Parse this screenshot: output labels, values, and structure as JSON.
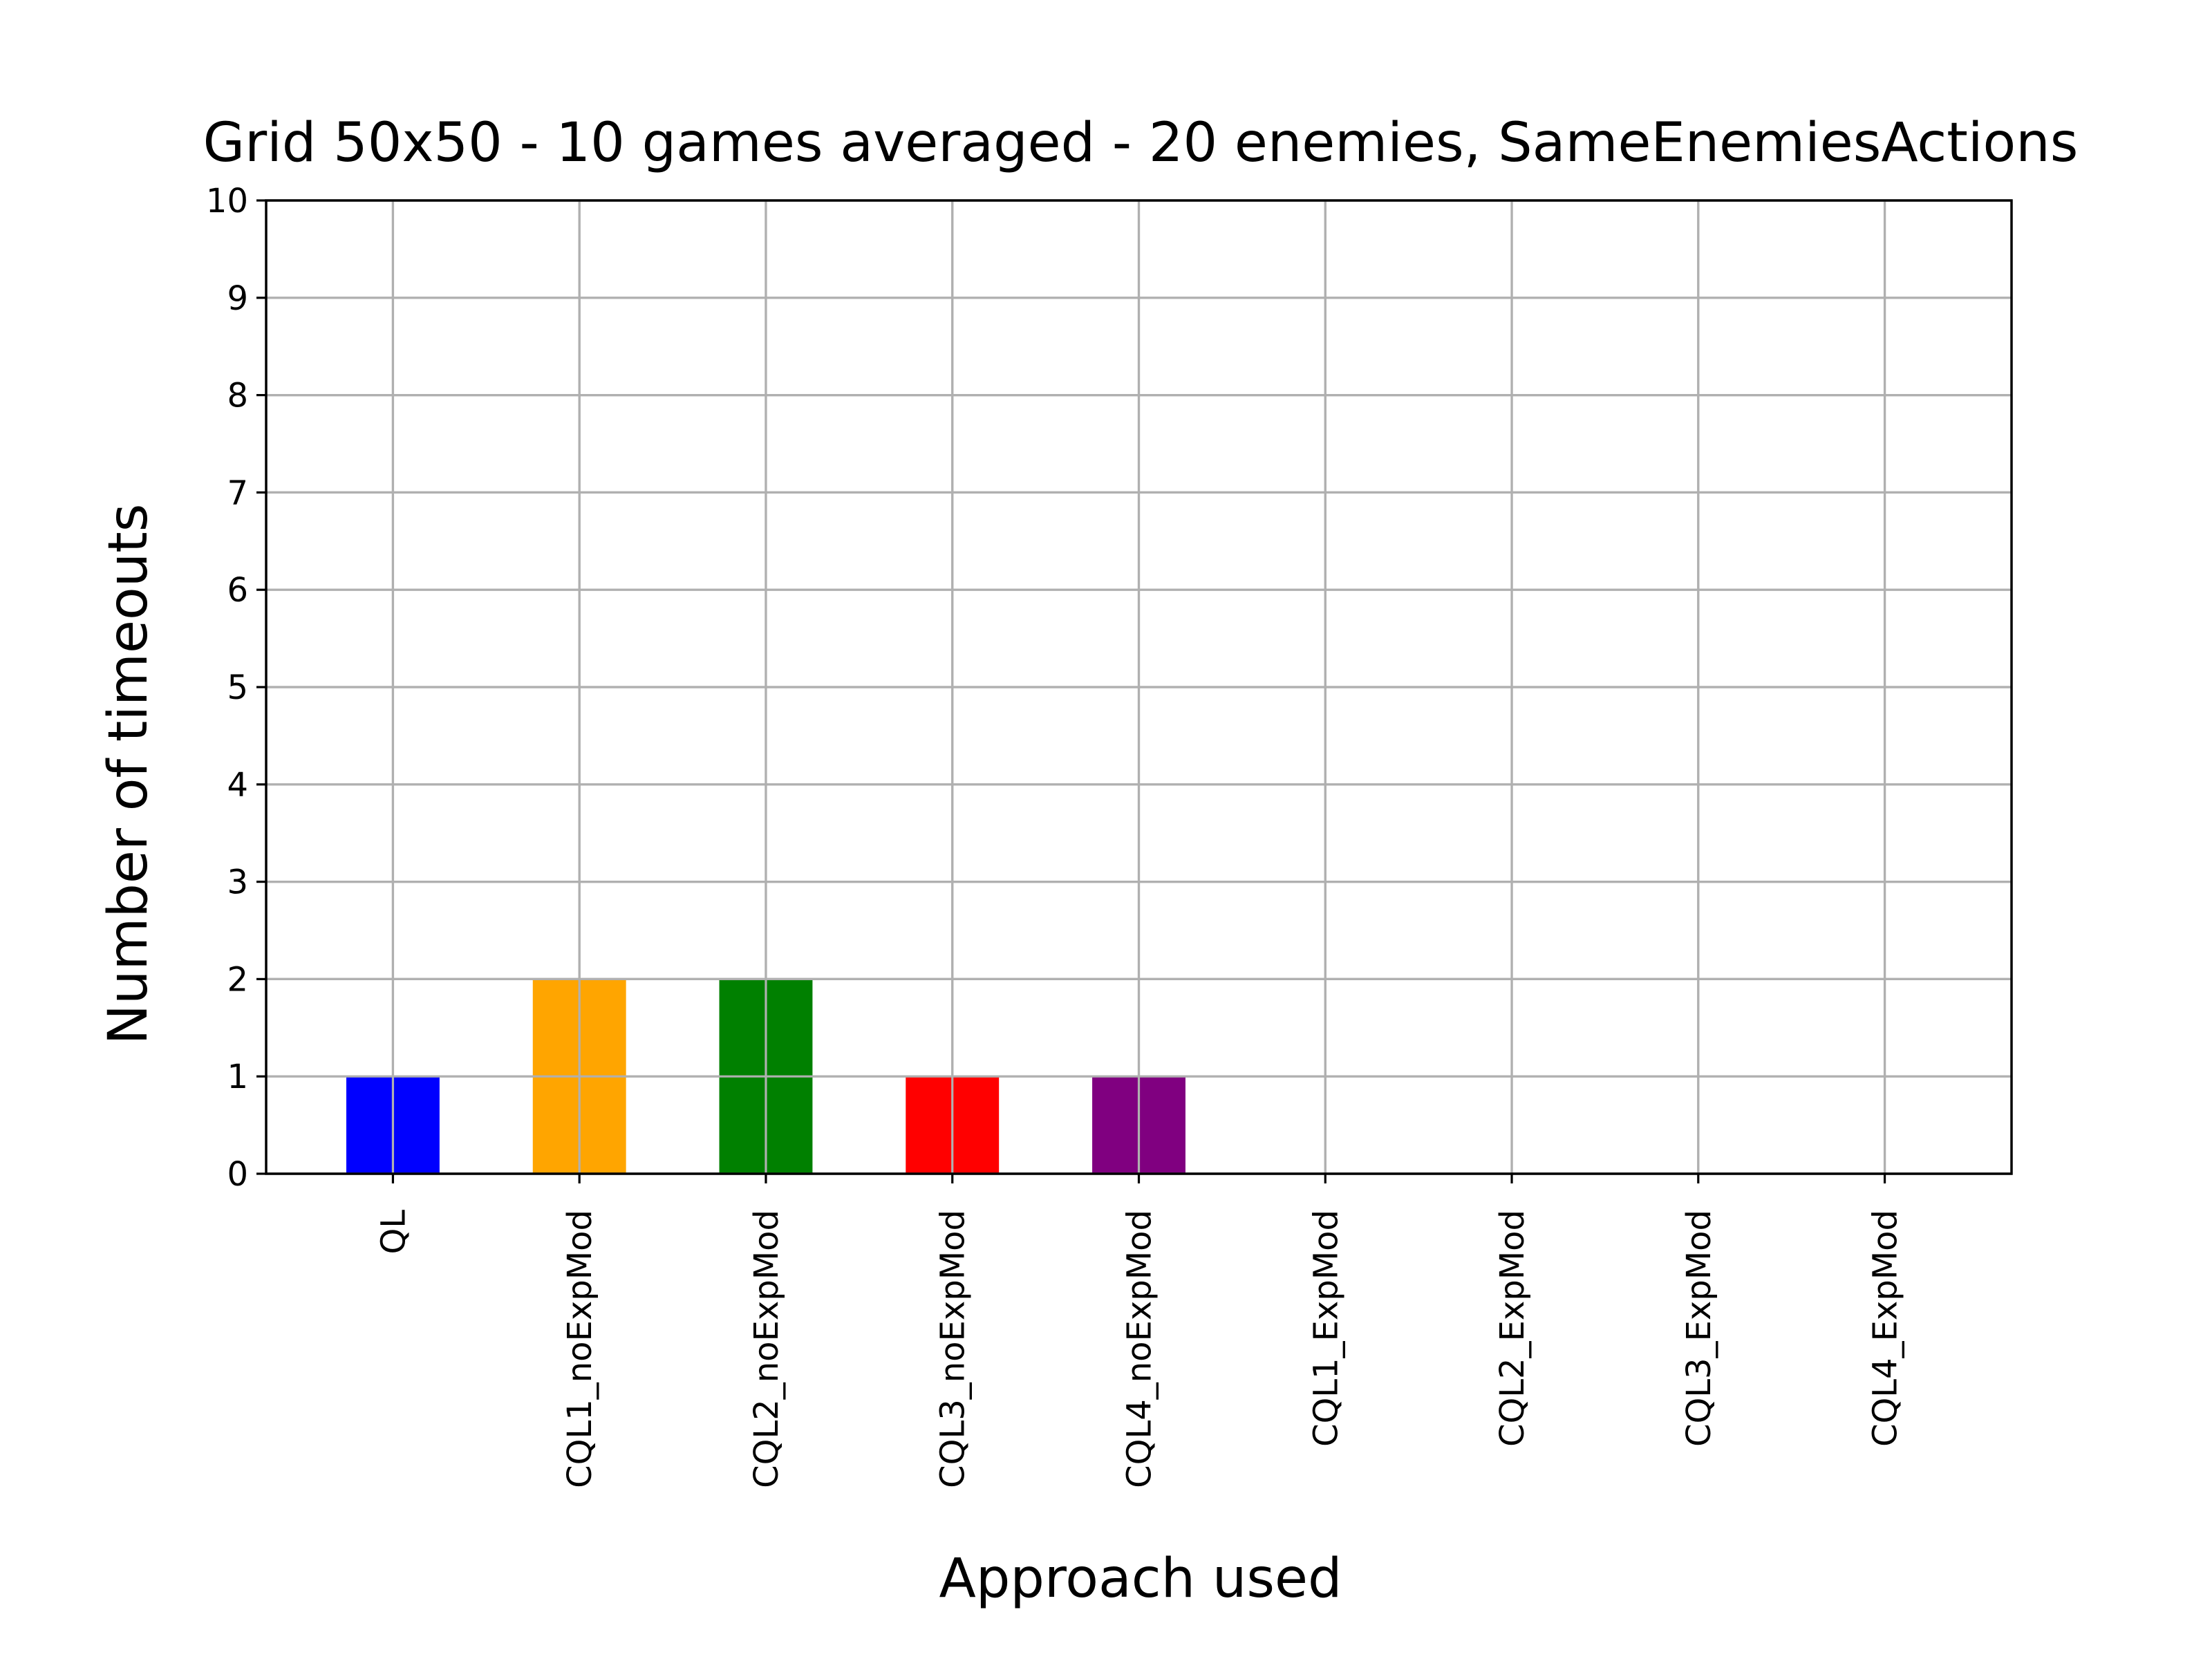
{
  "chart_data": {
    "type": "bar",
    "title": "Grid 50x50 - 10 games averaged - 20 enemies, SameEnemiesActions",
    "xlabel": "Approach used",
    "ylabel": "Number of timeouts",
    "categories": [
      "QL",
      "CQL1_noExpMod",
      "CQL2_noExpMod",
      "CQL3_noExpMod",
      "CQL4_noExpMod",
      "CQL1_ExpMod",
      "CQL2_ExpMod",
      "CQL3_ExpMod",
      "CQL4_ExpMod"
    ],
    "values": [
      1,
      2,
      2,
      1,
      1,
      0,
      0,
      0,
      0
    ],
    "colors": [
      "#0000ff",
      "#ffa500",
      "#008000",
      "#ff0000",
      "#800080",
      "#0000ff",
      "#ffa500",
      "#008000",
      "#ff0000"
    ],
    "ylim": [
      0,
      10
    ],
    "yticks": [
      "0",
      "1",
      "2",
      "3",
      "4",
      "5",
      "6",
      "7",
      "8",
      "9",
      "10"
    ],
    "grid": true,
    "legend": "none"
  }
}
